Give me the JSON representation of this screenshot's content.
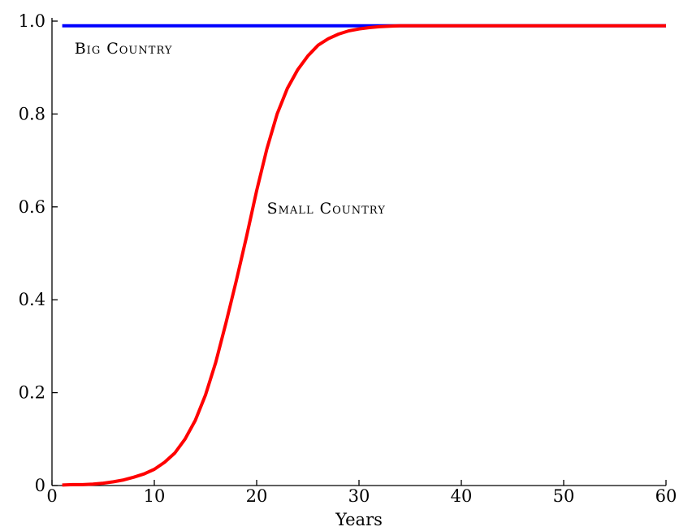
{
  "chart_data": {
    "type": "line",
    "title": "",
    "xlabel": "Years",
    "ylabel": "",
    "xlim": [
      0,
      60
    ],
    "ylim": [
      0,
      1
    ],
    "xticks": [
      0,
      10,
      20,
      30,
      40,
      50,
      60
    ],
    "yticks": [
      0,
      0.2,
      0.4,
      0.6,
      0.8,
      1.0
    ],
    "xtick_labels": [
      "0",
      "10",
      "20",
      "30",
      "40",
      "50",
      "60"
    ],
    "ytick_labels": [
      "0",
      "0.2",
      "0.4",
      "0.6",
      "0.8",
      "1.0"
    ],
    "grid": false,
    "legend": "none",
    "series": [
      {
        "name": "Big Country",
        "color": "#0000ff",
        "x": [
          1,
          60
        ],
        "y": [
          0.99,
          0.99
        ]
      },
      {
        "name": "Small Country",
        "color": "#ff0000",
        "x": [
          1,
          2,
          3,
          4,
          5,
          6,
          7,
          8,
          9,
          10,
          11,
          12,
          13,
          14,
          15,
          16,
          17,
          18,
          19,
          20,
          21,
          22,
          23,
          24,
          25,
          26,
          27,
          28,
          29,
          30,
          31,
          32,
          33,
          34,
          35,
          36,
          38,
          40,
          45,
          50,
          55,
          60
        ],
        "y": [
          0.001,
          0.002,
          0.002,
          0.003,
          0.005,
          0.008,
          0.012,
          0.018,
          0.025,
          0.035,
          0.05,
          0.07,
          0.1,
          0.14,
          0.195,
          0.265,
          0.35,
          0.44,
          0.535,
          0.635,
          0.725,
          0.8,
          0.855,
          0.895,
          0.925,
          0.948,
          0.962,
          0.972,
          0.979,
          0.983,
          0.986,
          0.988,
          0.989,
          0.99,
          0.99,
          0.99,
          0.99,
          0.99,
          0.99,
          0.99,
          0.99,
          0.99
        ]
      }
    ]
  },
  "labels": {
    "big_country": "Big Country",
    "small_country": "Small Country"
  }
}
